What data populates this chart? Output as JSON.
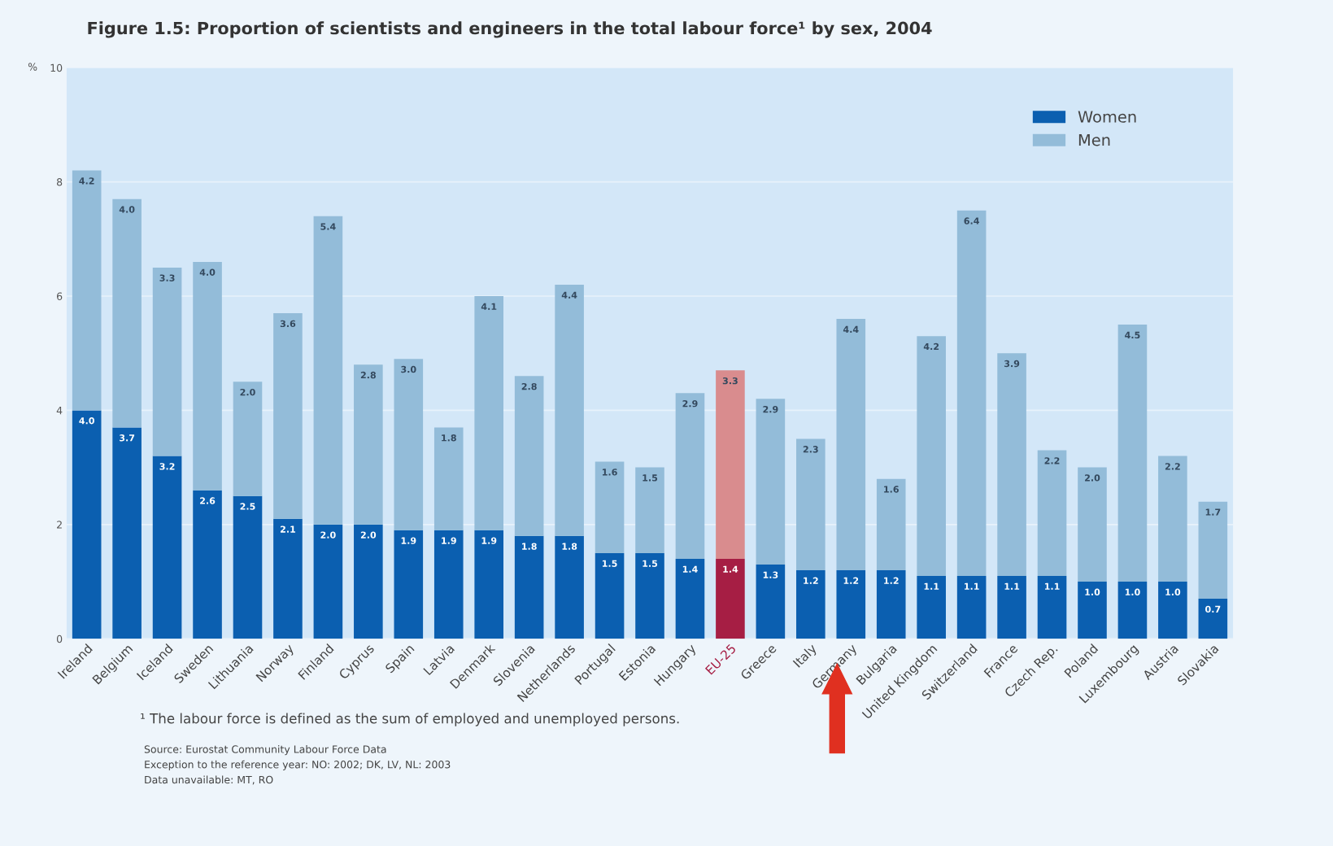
{
  "chart_data": {
    "type": "bar",
    "stacked": true,
    "title": "Figure 1.5: Proportion of scientists and engineers in the total labour force¹ by sex, 2004",
    "ylabel": "%",
    "categories": [
      "Ireland",
      "Belgium",
      "Iceland",
      "Sweden",
      "Lithuania",
      "Norway",
      "Finland",
      "Cyprus",
      "Spain",
      "Latvia",
      "Denmark",
      "Slovenia",
      "Netherlands",
      "Portugal",
      "Estonia",
      "Hungary",
      "EU-25",
      "Greece",
      "Italy",
      "Germany",
      "Bulgaria",
      "United Kingdom",
      "Switzerland",
      "France",
      "Czech Rep.",
      "Poland",
      "Luxembourg",
      "Austria",
      "Slovakia"
    ],
    "series": [
      {
        "name": "Women",
        "color": "#0b5fb0",
        "colors": [
          "#0b5fb0",
          "#0b5fb0",
          "#0b5fb0",
          "#0b5fb0",
          "#0b5fb0",
          "#0b5fb0",
          "#0b5fb0",
          "#0b5fb0",
          "#0b5fb0",
          "#0b5fb0",
          "#0b5fb0",
          "#0b5fb0",
          "#0b5fb0",
          "#0b5fb0",
          "#0b5fb0",
          "#0b5fb0",
          "#a61e44",
          "#0b5fb0",
          "#0b5fb0",
          "#0b5fb0",
          "#0b5fb0",
          "#0b5fb0",
          "#0b5fb0",
          "#0b5fb0",
          "#0b5fb0",
          "#0b5fb0",
          "#0b5fb0",
          "#0b5fb0",
          "#0b5fb0"
        ],
        "values": [
          4.0,
          3.7,
          3.2,
          2.6,
          2.5,
          2.1,
          2.0,
          2.0,
          1.9,
          1.9,
          1.9,
          1.8,
          1.8,
          1.5,
          1.5,
          1.4,
          1.4,
          1.3,
          1.2,
          1.2,
          1.2,
          1.1,
          1.1,
          1.1,
          1.1,
          1.0,
          1.0,
          1.0,
          0.7
        ],
        "value_labels": [
          "4.0",
          "3.7",
          "3.2",
          "2.6",
          "2.5",
          "2.1",
          "2.0",
          "2.0",
          "1.9",
          "1.9",
          "1.9",
          "1.8",
          "1.8",
          "1.5",
          "1.5",
          "1.4",
          "1.4",
          "1.3",
          "1.2",
          "1.2",
          "1.2",
          "1.1",
          "1.1",
          "1.1",
          "1.1",
          "1.0",
          "1.0",
          "1.0",
          "0.7"
        ]
      },
      {
        "name": "Men",
        "color": "#93bcd9",
        "colors": [
          "#93bcd9",
          "#93bcd9",
          "#93bcd9",
          "#93bcd9",
          "#93bcd9",
          "#93bcd9",
          "#93bcd9",
          "#93bcd9",
          "#93bcd9",
          "#93bcd9",
          "#93bcd9",
          "#93bcd9",
          "#93bcd9",
          "#93bcd9",
          "#93bcd9",
          "#93bcd9",
          "#d98c8e",
          "#93bcd9",
          "#93bcd9",
          "#93bcd9",
          "#93bcd9",
          "#93bcd9",
          "#93bcd9",
          "#93bcd9",
          "#93bcd9",
          "#93bcd9",
          "#93bcd9",
          "#93bcd9",
          "#93bcd9"
        ],
        "values": [
          4.2,
          4.0,
          3.3,
          4.0,
          2.0,
          3.6,
          5.4,
          2.8,
          3.0,
          1.8,
          4.1,
          2.8,
          4.4,
          1.6,
          1.5,
          2.9,
          3.3,
          2.9,
          2.3,
          4.4,
          1.6,
          4.2,
          6.4,
          3.9,
          2.2,
          2.0,
          4.5,
          2.2,
          1.7
        ],
        "value_labels": [
          "4.2",
          "4.0",
          "3.3",
          "4.0",
          "2.0",
          "3.6",
          "5.4",
          "2.8",
          "3.0",
          "1.8",
          "4.1",
          "2.8",
          "4.4",
          "1.6",
          "1.5",
          "2.9",
          "3.3",
          "2.9",
          "2.3",
          "4.4",
          "1.6",
          "4.2",
          "6.4",
          "3.9",
          "2.2",
          "2.0",
          "4.5",
          "2.2",
          "1.7"
        ]
      }
    ],
    "ylim": [
      0,
      10
    ],
    "yticks": [
      0,
      2,
      4,
      6,
      8,
      10
    ],
    "grid": "y",
    "legend": "top right",
    "annotations": [
      "¹ The labour force is defined as the sum of employed and unemployed persons.",
      "Source: Eurostat Community Labour Force Data",
      "Exception to the reference year: NO: 2002; DK, LV, NL: 2003",
      "Data unavailable: MT, RO"
    ]
  }
}
